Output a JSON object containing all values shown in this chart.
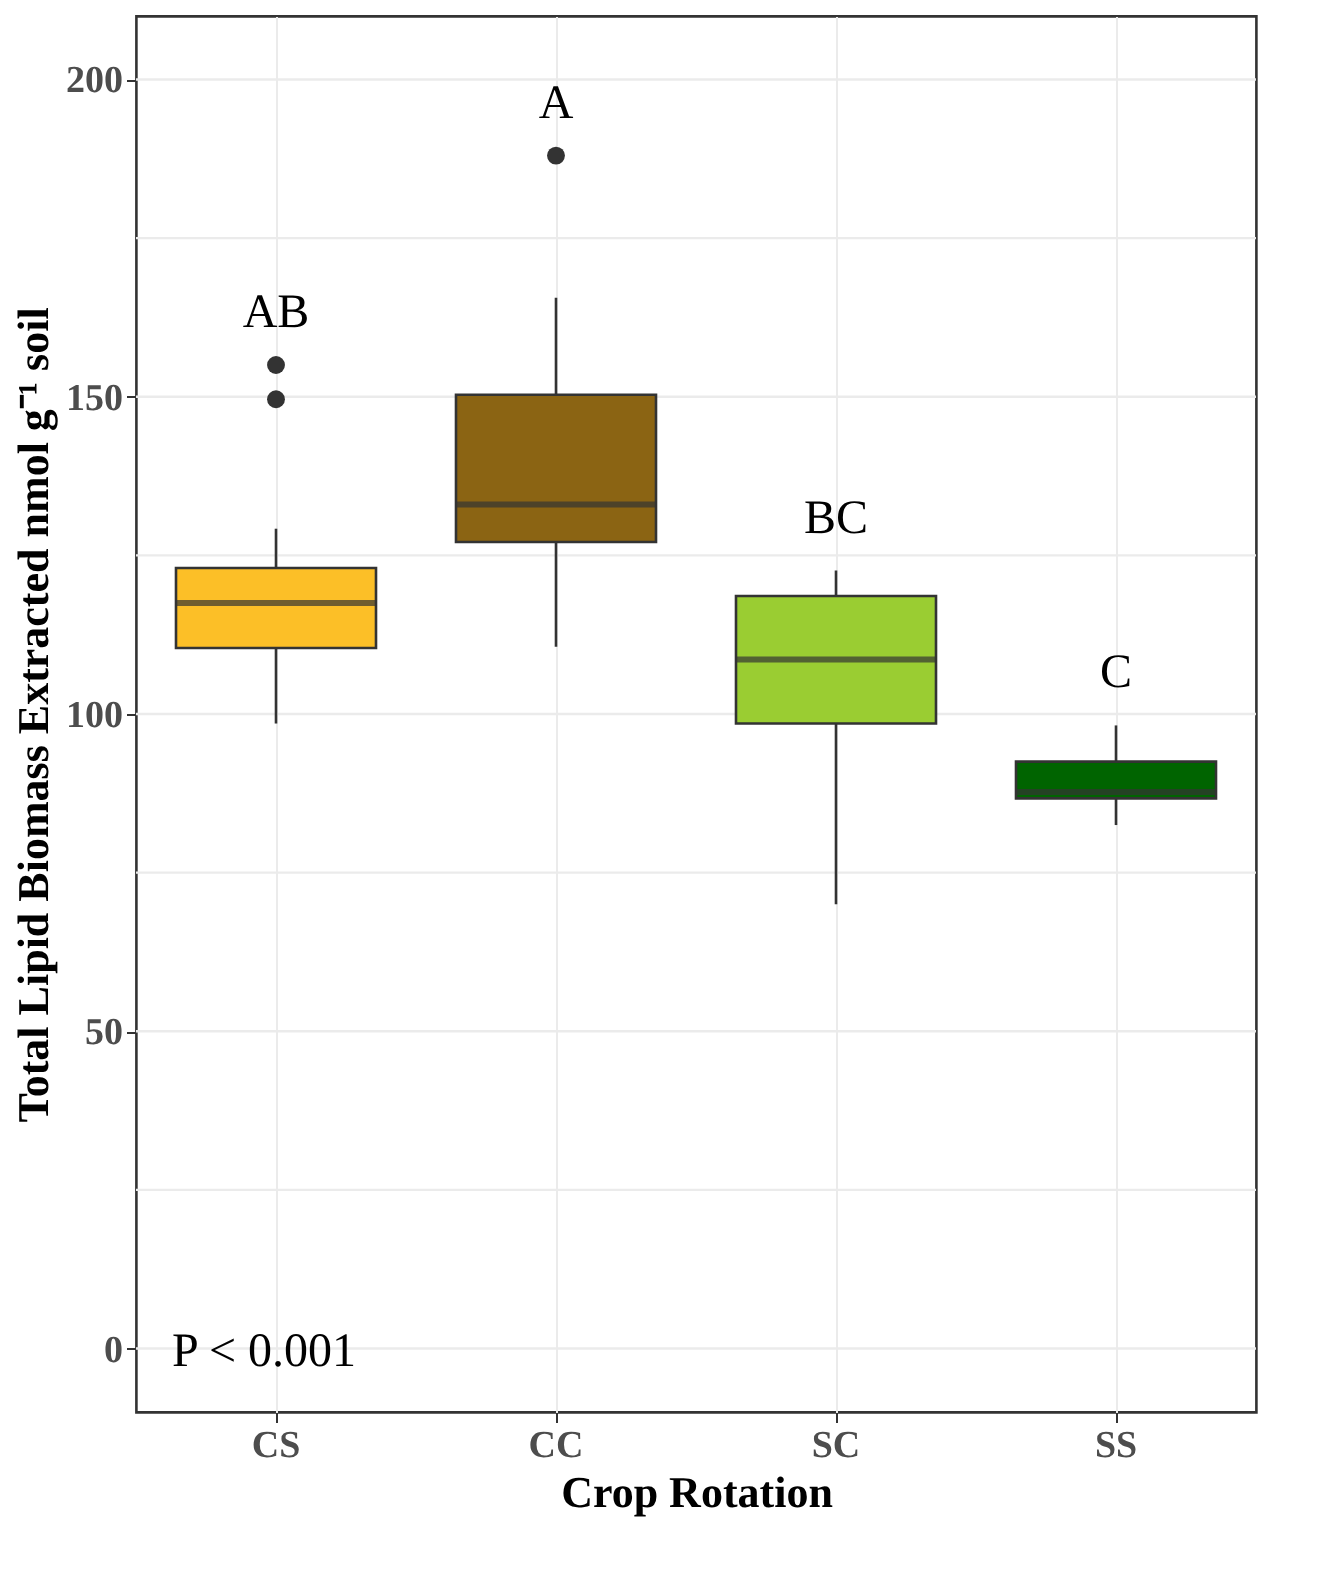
{
  "chart_data": {
    "type": "box",
    "xlabel": "Crop Rotation",
    "ylabel": "Total Lipid Biomass Extracted nmol g⁻¹ soil",
    "categories": [
      "CS",
      "CC",
      "SC",
      "SS"
    ],
    "colors": [
      "#fcbf27",
      "#8b6413",
      "#9acd32",
      "#006400"
    ],
    "boxes": [
      {
        "low": 98.5,
        "q1": 110.4,
        "median": 117.5,
        "q3": 123,
        "high": 129.2,
        "outliers": [
          155,
          149.6
        ]
      },
      {
        "low": 110.6,
        "q1": 127.1,
        "median": 133,
        "q3": 150.3,
        "high": 165.6,
        "outliers": [
          188
        ]
      },
      {
        "low": 70,
        "q1": 98.5,
        "median": 108.6,
        "q3": 118.6,
        "high": 122.6
      },
      {
        "low": 82.5,
        "q1": 86.7,
        "median": 87.7,
        "q3": 92.5,
        "high": 98.2
      }
    ],
    "annotations": [
      "AB",
      "A",
      "BC",
      "C",
      "P < 0.001"
    ],
    "ylim": [
      -10,
      210
    ],
    "yticks": [
      0,
      50,
      100,
      150,
      200
    ],
    "grid": true
  }
}
